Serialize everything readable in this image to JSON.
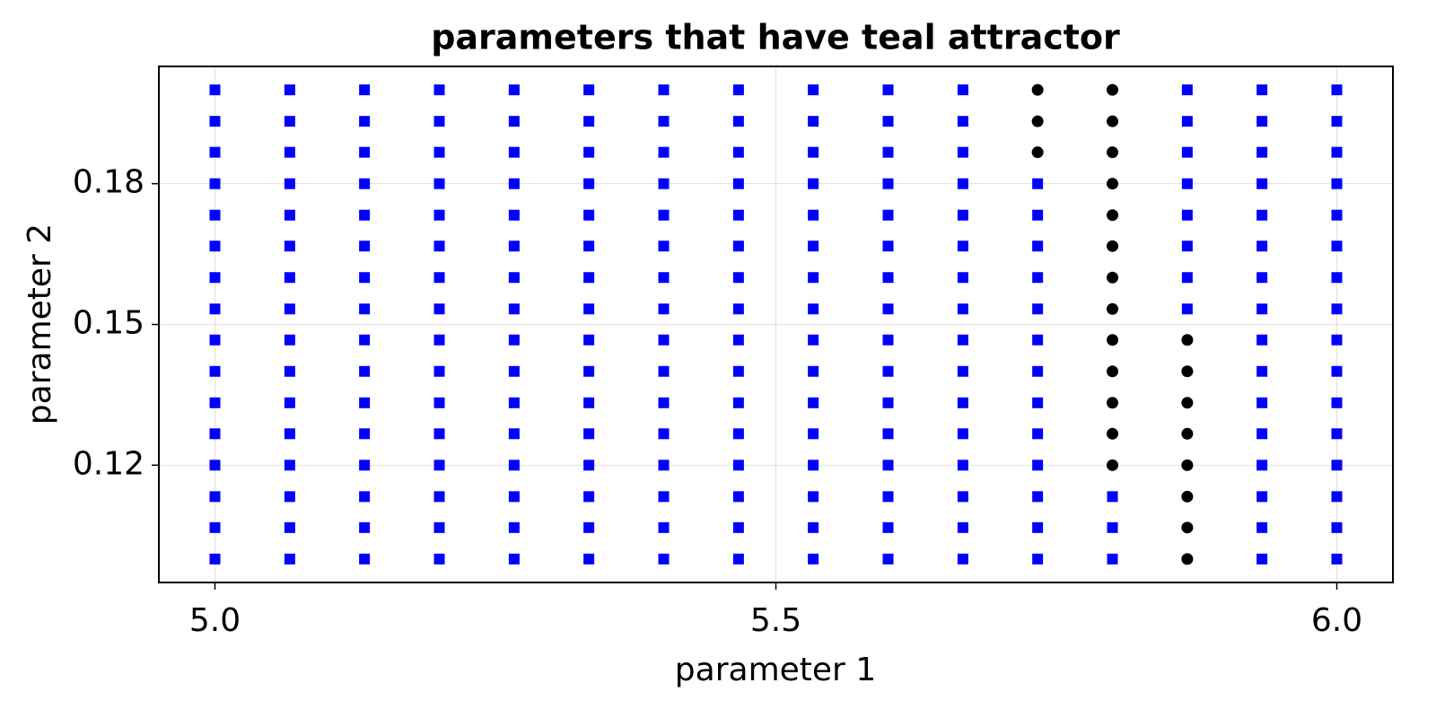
{
  "chart_data": {
    "type": "scatter",
    "title": "parameters that have teal attractor",
    "x_label": "parameter 1",
    "y_label": "parameter 2",
    "xlim": [
      4.95,
      6.05
    ],
    "ylim": [
      0.095,
      0.205
    ],
    "xticks": [
      {
        "value": 5,
        "label": "5.0"
      },
      {
        "value": 5.5,
        "label": "5.5"
      },
      {
        "value": 6,
        "label": "6.0"
      }
    ],
    "yticks": [
      0.12,
      0.15,
      0.18
    ],
    "grid": true,
    "series": [
      {
        "color": "#0000ff",
        "marker": "square",
        "x": [
          5,
          5,
          5,
          5,
          5,
          5,
          5,
          5,
          5,
          5,
          5,
          5,
          5,
          5,
          5,
          5,
          5.0667,
          5.0667,
          5.0667,
          5.0667,
          5.0667,
          5.0667,
          5.0667,
          5.0667,
          5.0667,
          5.0667,
          5.0667,
          5.0667,
          5.0667,
          5.0667,
          5.0667,
          5.0667,
          5.1333,
          5.1333,
          5.1333,
          5.1333,
          5.1333,
          5.1333,
          5.1333,
          5.1333,
          5.1333,
          5.1333,
          5.1333,
          5.1333,
          5.1333,
          5.1333,
          5.1333,
          5.1333,
          5.2,
          5.2,
          5.2,
          5.2,
          5.2,
          5.2,
          5.2,
          5.2,
          5.2,
          5.2,
          5.2,
          5.2,
          5.2,
          5.2,
          5.2,
          5.2,
          5.2667,
          5.2667,
          5.2667,
          5.2667,
          5.2667,
          5.2667,
          5.2667,
          5.2667,
          5.2667,
          5.2667,
          5.2667,
          5.2667,
          5.2667,
          5.2667,
          5.2667,
          5.2667,
          5.3333,
          5.3333,
          5.3333,
          5.3333,
          5.3333,
          5.3333,
          5.3333,
          5.3333,
          5.3333,
          5.3333,
          5.3333,
          5.3333,
          5.3333,
          5.3333,
          5.3333,
          5.3333,
          5.4,
          5.4,
          5.4,
          5.4,
          5.4,
          5.4,
          5.4,
          5.4,
          5.4,
          5.4,
          5.4,
          5.4,
          5.4,
          5.4,
          5.4,
          5.4,
          5.4667,
          5.4667,
          5.4667,
          5.4667,
          5.4667,
          5.4667,
          5.4667,
          5.4667,
          5.4667,
          5.4667,
          5.4667,
          5.4667,
          5.4667,
          5.4667,
          5.4667,
          5.4667,
          5.5333,
          5.5333,
          5.5333,
          5.5333,
          5.5333,
          5.5333,
          5.5333,
          5.5333,
          5.5333,
          5.5333,
          5.5333,
          5.5333,
          5.5333,
          5.5333,
          5.5333,
          5.5333,
          5.6,
          5.6,
          5.6,
          5.6,
          5.6,
          5.6,
          5.6,
          5.6,
          5.6,
          5.6,
          5.6,
          5.6,
          5.6,
          5.6,
          5.6,
          5.6,
          5.6667,
          5.6667,
          5.6667,
          5.6667,
          5.6667,
          5.6667,
          5.6667,
          5.6667,
          5.6667,
          5.6667,
          5.6667,
          5.6667,
          5.6667,
          5.6667,
          5.6667,
          5.6667,
          5.7333,
          5.7333,
          5.7333,
          5.7333,
          5.7333,
          5.7333,
          5.7333,
          5.7333,
          5.7333,
          5.7333,
          5.7333,
          5.7333,
          5.7333,
          5.8,
          5.8,
          5.8,
          5.8667,
          5.8667,
          5.8667,
          5.8667,
          5.8667,
          5.8667,
          5.8667,
          5.8667,
          5.9333,
          5.9333,
          5.9333,
          5.9333,
          5.9333,
          5.9333,
          5.9333,
          5.9333,
          5.9333,
          5.9333,
          5.9333,
          5.9333,
          5.9333,
          5.9333,
          5.9333,
          5.9333,
          6,
          6,
          6,
          6,
          6,
          6,
          6,
          6,
          6,
          6,
          6,
          6,
          6,
          6,
          6,
          6
        ],
        "values": [
          0.1,
          0.1067,
          0.1133,
          0.12,
          0.1267,
          0.1333,
          0.14,
          0.1467,
          0.1533,
          0.16,
          0.1667,
          0.1733,
          0.18,
          0.1867,
          0.1933,
          0.2,
          0.1,
          0.1067,
          0.1133,
          0.12,
          0.1267,
          0.1333,
          0.14,
          0.1467,
          0.1533,
          0.16,
          0.1667,
          0.1733,
          0.18,
          0.1867,
          0.1933,
          0.2,
          0.1,
          0.1067,
          0.1133,
          0.12,
          0.1267,
          0.1333,
          0.14,
          0.1467,
          0.1533,
          0.16,
          0.1667,
          0.1733,
          0.18,
          0.1867,
          0.1933,
          0.2,
          0.1,
          0.1067,
          0.1133,
          0.12,
          0.1267,
          0.1333,
          0.14,
          0.1467,
          0.1533,
          0.16,
          0.1667,
          0.1733,
          0.18,
          0.1867,
          0.1933,
          0.2,
          0.1,
          0.1067,
          0.1133,
          0.12,
          0.1267,
          0.1333,
          0.14,
          0.1467,
          0.1533,
          0.16,
          0.1667,
          0.1733,
          0.18,
          0.1867,
          0.1933,
          0.2,
          0.1,
          0.1067,
          0.1133,
          0.12,
          0.1267,
          0.1333,
          0.14,
          0.1467,
          0.1533,
          0.16,
          0.1667,
          0.1733,
          0.18,
          0.1867,
          0.1933,
          0.2,
          0.1,
          0.1067,
          0.1133,
          0.12,
          0.1267,
          0.1333,
          0.14,
          0.1467,
          0.1533,
          0.16,
          0.1667,
          0.1733,
          0.18,
          0.1867,
          0.1933,
          0.2,
          0.1,
          0.1067,
          0.1133,
          0.12,
          0.1267,
          0.1333,
          0.14,
          0.1467,
          0.1533,
          0.16,
          0.1667,
          0.1733,
          0.18,
          0.1867,
          0.1933,
          0.2,
          0.1,
          0.1067,
          0.1133,
          0.12,
          0.1267,
          0.1333,
          0.14,
          0.1467,
          0.1533,
          0.16,
          0.1667,
          0.1733,
          0.18,
          0.1867,
          0.1933,
          0.2,
          0.1,
          0.1067,
          0.1133,
          0.12,
          0.1267,
          0.1333,
          0.14,
          0.1467,
          0.1533,
          0.16,
          0.1667,
          0.1733,
          0.18,
          0.1867,
          0.1933,
          0.2,
          0.1,
          0.1067,
          0.1133,
          0.12,
          0.1267,
          0.1333,
          0.14,
          0.1467,
          0.1533,
          0.16,
          0.1667,
          0.1733,
          0.18,
          0.1867,
          0.1933,
          0.2,
          0.1,
          0.1067,
          0.1133,
          0.12,
          0.1267,
          0.1333,
          0.14,
          0.1467,
          0.1533,
          0.16,
          0.1667,
          0.1733,
          0.18,
          0.1,
          0.1067,
          0.1133,
          0.1533,
          0.16,
          0.1667,
          0.1733,
          0.18,
          0.1867,
          0.1933,
          0.2,
          0.1,
          0.1067,
          0.1133,
          0.12,
          0.1267,
          0.1333,
          0.14,
          0.1467,
          0.1533,
          0.16,
          0.1667,
          0.1733,
          0.18,
          0.1867,
          0.1933,
          0.2,
          0.1,
          0.1067,
          0.1133,
          0.12,
          0.1267,
          0.1333,
          0.14,
          0.1467,
          0.1533,
          0.16,
          0.1667,
          0.1733,
          0.18,
          0.1867,
          0.1933,
          0.2
        ]
      },
      {
        "color": "#000000",
        "marker": "circle",
        "x": [
          5.7333,
          5.7333,
          5.7333,
          5.8,
          5.8,
          5.8,
          5.8,
          5.8,
          5.8,
          5.8,
          5.8,
          5.8,
          5.8,
          5.8,
          5.8,
          5.8,
          5.8667,
          5.8667,
          5.8667,
          5.8667,
          5.8667,
          5.8667,
          5.8667,
          5.8667
        ],
        "values": [
          0.1867,
          0.1933,
          0.2,
          0.12,
          0.1267,
          0.1333,
          0.14,
          0.1467,
          0.1533,
          0.16,
          0.1667,
          0.1733,
          0.18,
          0.1867,
          0.1933,
          0.2,
          0.1,
          0.1067,
          0.1133,
          0.12,
          0.1267,
          0.1333,
          0.14,
          0.1467
        ]
      }
    ]
  }
}
